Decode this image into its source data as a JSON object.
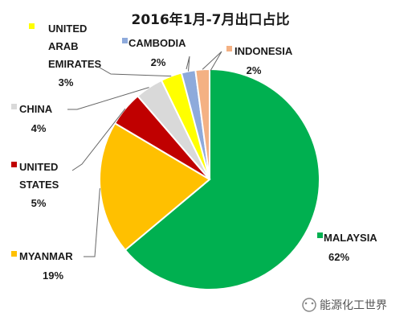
{
  "chart_data": {
    "type": "pie",
    "title": "2016年1月-7月出口占比",
    "series": [
      {
        "categories": [
          "MALAYSIA",
          "MYANMAR",
          "UNITED STATES",
          "CHINA",
          "UNITED ARAB EMIRATES",
          "CAMBODIA",
          "INDONESIA"
        ],
        "values": [
          62,
          19,
          5,
          4,
          3,
          2,
          2
        ],
        "value_labels": [
          "62%",
          "19%",
          "5%",
          "4%",
          "3%",
          "2%",
          "2%"
        ]
      }
    ],
    "legend": "none",
    "colors": [
      "#00b050",
      "#ffc000",
      "#c00000",
      "#d9d9d9",
      "#ffff00",
      "#8eaadb",
      "#f4b183"
    ]
  },
  "watermark": {
    "text": "能源化工世界",
    "icon": "wechat-icon"
  }
}
